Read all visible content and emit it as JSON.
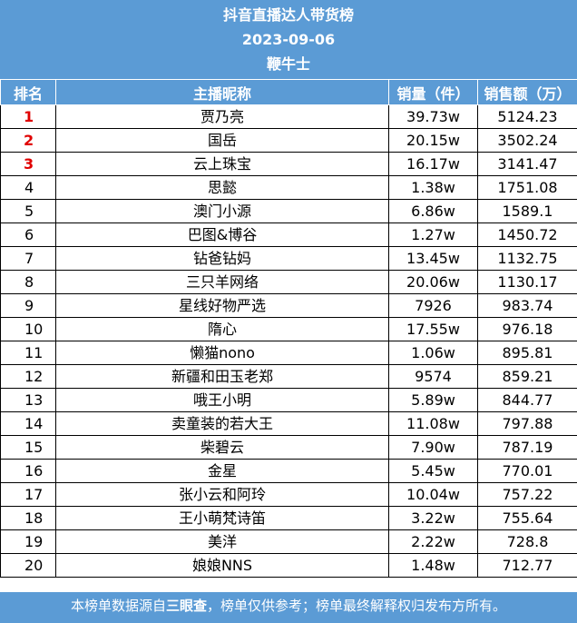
{
  "header": {
    "title": "抖音直播达人带货榜",
    "date": "2023-09-06",
    "category": "鞭牛士"
  },
  "columns": [
    "排名",
    "主播昵称",
    "销量（件）",
    "销售额（万）"
  ],
  "rows": [
    {
      "rank": "1",
      "name": "贾乃亮",
      "sales": "39.73w",
      "revenue": "5124.23"
    },
    {
      "rank": "2",
      "name": "国岳",
      "sales": "20.15w",
      "revenue": "3502.24"
    },
    {
      "rank": "3",
      "name": "云上珠宝",
      "sales": "16.17w",
      "revenue": "3141.47"
    },
    {
      "rank": "4",
      "name": "思懿",
      "sales": "1.38w",
      "revenue": "1751.08"
    },
    {
      "rank": "5",
      "name": "澳门小源",
      "sales": "6.86w",
      "revenue": "1589.1"
    },
    {
      "rank": "6",
      "name": "巴图&博谷",
      "sales": "1.27w",
      "revenue": "1450.72"
    },
    {
      "rank": "7",
      "name": "钻爸钻妈",
      "sales": "13.45w",
      "revenue": "1132.75"
    },
    {
      "rank": "8",
      "name": "三只羊网络",
      "sales": "20.06w",
      "revenue": "1130.17"
    },
    {
      "rank": "9",
      "name": "星线好物严选",
      "sales": "7926",
      "revenue": "983.74"
    },
    {
      "rank": "10",
      "name": "隋心",
      "sales": "17.55w",
      "revenue": "976.18"
    },
    {
      "rank": "11",
      "name": "懒猫nono",
      "sales": "1.06w",
      "revenue": "895.81"
    },
    {
      "rank": "12",
      "name": "新疆和田玉老郑",
      "sales": "9574",
      "revenue": "859.21"
    },
    {
      "rank": "13",
      "name": "哦王小明",
      "sales": "5.89w",
      "revenue": "844.77"
    },
    {
      "rank": "14",
      "name": "卖童装的若大王",
      "sales": "11.08w",
      "revenue": "797.88"
    },
    {
      "rank": "15",
      "name": "柴碧云",
      "sales": "7.90w",
      "revenue": "787.19"
    },
    {
      "rank": "16",
      "name": "金星",
      "sales": "5.45w",
      "revenue": "770.01"
    },
    {
      "rank": "17",
      "name": "张小云和阿玲",
      "sales": "10.04w",
      "revenue": "757.22"
    },
    {
      "rank": "18",
      "name": "王小萌梵诗笛",
      "sales": "3.22w",
      "revenue": "755.64"
    },
    {
      "rank": "19",
      "name": "美洋",
      "sales": "2.22w",
      "revenue": "728.8"
    },
    {
      "rank": "20",
      "name": "娘娘NNS",
      "sales": "1.48w",
      "revenue": "712.77"
    }
  ],
  "footer": {
    "prefix": "本榜单数据源自",
    "source": "三眼查",
    "suffix": "，榜单仅供参考；榜单最终解释权归发布方所有。"
  }
}
